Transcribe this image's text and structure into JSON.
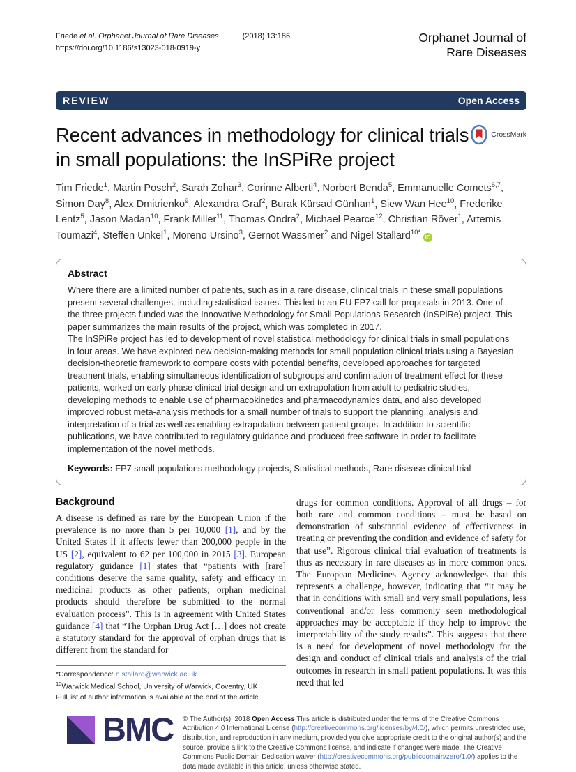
{
  "header": {
    "citation_author": "Friede ",
    "citation_journal_italic": "et al. Orphanet Journal of Rare Diseases",
    "citation_issue": "(2018) 13:186",
    "doi": "https://doi.org/10.1186/s13023-018-0919-y",
    "journal_name_line1": "Orphanet Journal of",
    "journal_name_line2": "Rare Diseases"
  },
  "banner": {
    "type_label": "REVIEW",
    "access_label": "Open Access"
  },
  "article": {
    "title": "Recent advances in methodology for clinical trials in small populations: the InSPiRe project",
    "crossmark_label": "CrossMark"
  },
  "authors": {
    "list": [
      {
        "name": "Tim Friede",
        "sup": "1"
      },
      {
        "name": "Martin Posch",
        "sup": "2"
      },
      {
        "name": "Sarah Zohar",
        "sup": "3"
      },
      {
        "name": "Corinne Alberti",
        "sup": "4"
      },
      {
        "name": "Norbert Benda",
        "sup": "5"
      },
      {
        "name": "Emmanuelle Comets",
        "sup": "6,7"
      },
      {
        "name": "Simon Day",
        "sup": "8"
      },
      {
        "name": "Alex Dmitrienko",
        "sup": "9"
      },
      {
        "name": "Alexandra Graf",
        "sup": "2"
      },
      {
        "name": "Burak Kürsad Günhan",
        "sup": "1"
      },
      {
        "name": "Siew Wan Hee",
        "sup": "10"
      },
      {
        "name": "Frederike Lentz",
        "sup": "5"
      },
      {
        "name": "Jason Madan",
        "sup": "10"
      },
      {
        "name": "Frank Miller",
        "sup": "11"
      },
      {
        "name": "Thomas Ondra",
        "sup": "2"
      },
      {
        "name": "Michael Pearce",
        "sup": "12"
      },
      {
        "name": "Christian Röver",
        "sup": "1"
      },
      {
        "name": "Artemis Toumazi",
        "sup": "4"
      },
      {
        "name": "Steffen Unkel",
        "sup": "1"
      },
      {
        "name": "Moreno Ursino",
        "sup": "3"
      },
      {
        "name": "Gernot Wassmer",
        "sup": "2"
      },
      {
        "name": "Nigel Stallard",
        "sup": "10*"
      }
    ]
  },
  "abstract": {
    "heading": "Abstract",
    "paragraph1": "Where  there are a limited number of patients, such as in a rare disease, clinical trials in these small populations present several challenges, including statistical issues. This led to an EU FP7 call for proposals in 2013. One of the three projects funded was the Innovative Methodology for Small Populations Research (InSPiRe) project. This paper summarizes the main results of the project, which was completed in 2017.",
    "paragraph2": "The  InSPiRe project has led to development of novel statistical methodology for clinical trials in small populations in four areas. We have explored new decision-making methods for small population clinical trials using a Bayesian decision-theoretic framework to compare costs with potential benefits, developed approaches for targeted treatment trials, enabling simultaneous identification of subgroups and confirmation of treatment effect for these patients, worked on early phase clinical trial design and on extrapolation from adult to pediatric studies, developing methods to enable use of pharmacokinetics and pharmacodynamics data, and also developed improved robust meta-analysis methods for a small number of trials to support the planning, analysis and interpretation of a trial as well as enabling extrapolation between patient groups. In addition to scientific publications, we have contributed to regulatory guidance and produced free software in order to facilitate implementation of the novel methods.",
    "keywords_label": "Keywords:",
    "keywords": "FP7 small populations methodology projects, Statistical methods, Rare disease clinical trial"
  },
  "background": {
    "heading": "Background",
    "column_left": "A disease is defined as rare by the European Union if the prevalence is no more than 5 per 10,000 [1], and by the United States if it affects fewer than 200,000 people in the US [2], equivalent to 62 per 100,000 in 2015 [3]. European regulatory guidance [1] states that “patients with [rare] conditions deserve the same quality, safety and efficacy in medicinal products as other patients; orphan medicinal products should therefore be submitted to the normal evaluation process”. This is in agreement with United States guidance [4] that “The Orphan Drug Act […] does not create a statutory standard for the approval of orphan drugs that is different from the standard for",
    "column_right": "drugs for common conditions. Approval of all drugs – for both rare and common conditions – must be based on demonstration of substantial evidence of effectiveness in treating or preventing the condition and evidence of safety for that use”. Rigorous clinical trial evaluation of treatments is thus as necessary in rare diseases as in more common ones. The European Medicines Agency acknowledges that this represents a challenge, however, indicating that “it may be that in conditions with small and very small populations, less conventional and/or less commonly seen methodological approaches may be acceptable if they help to improve the interpretability of the study results”. This suggests that there is a need for development of novel methodology for the design and conduct of clinical trials and analysis of the trial outcomes in research in small patient populations. It was this need that led"
  },
  "footnote": {
    "correspondence_label": "*Correspondence: ",
    "correspondence_email": "n.stallard@warwick.ac.uk",
    "affiliation_sup": "10",
    "affiliation": "Warwick Medical School, University of Warwick, Coventry, UK",
    "author_info": "Full list of author information is available at the end of the article"
  },
  "footer": {
    "logo_text": "BMC",
    "license_prefix": "© The Author(s). 2018 ",
    "license_bold": "Open Access",
    "license_part1": " This article is distributed under the terms of the Creative Commons Attribution 4.0 International License (",
    "license_link1": "http://creativecommons.org/licenses/by/4.0/",
    "license_part2": "), which permits unrestricted use, distribution, and reproduction in any medium, provided you give appropriate credit to the original author(s) and the source, provide a link to the Creative Commons license, and indicate if changes were made. The Creative Commons Public Domain Dedication waiver (",
    "license_link2": "http://creativecommons.org/publicdomain/zero/1.0/",
    "license_part3": ") applies to the data made available in this article, unless otherwise stated."
  },
  "colors": {
    "banner_navy": "#233A60",
    "citation_blue": "#3A46D4",
    "link_blue": "#4B73C0",
    "bmc_navy": "#2B2D5E",
    "bmc_purple": "#9A55CF",
    "crossmark_red": "#CC2A27",
    "crossmark_blue": "#4A7EBB",
    "orcid_green": "#A6CE39"
  }
}
